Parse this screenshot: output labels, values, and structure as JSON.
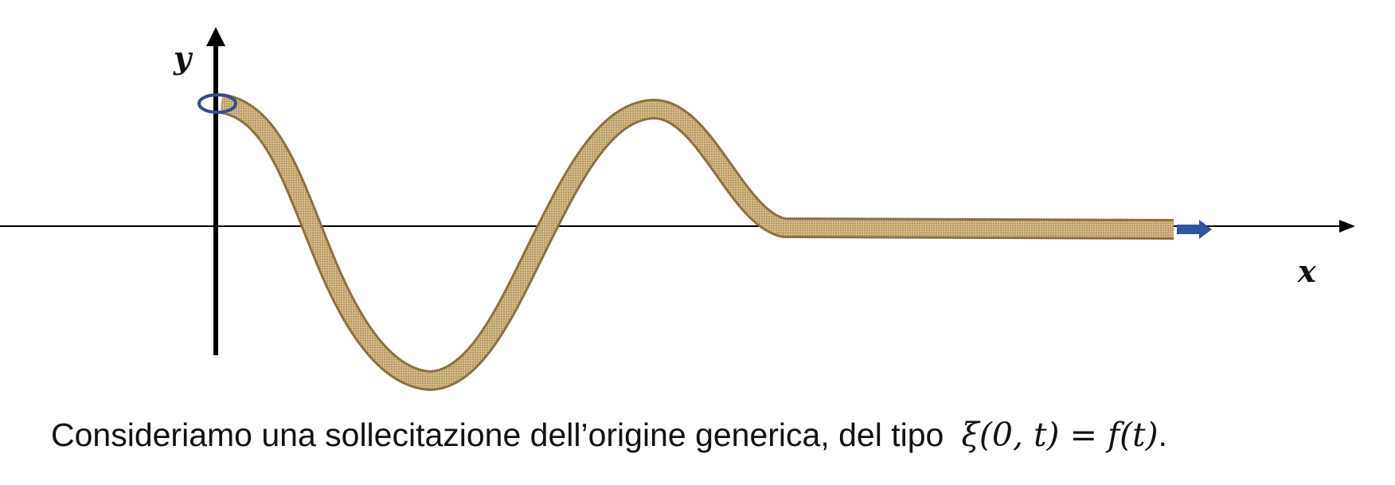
{
  "diagram": {
    "axis_x_label": "x",
    "axis_y_label": "y",
    "caption": "Consideriamo una sollecitazione dell’origine generica, del tipo",
    "formula": "ξ(0, t) = f(t)",
    "caption_end": ".",
    "colors": {
      "axes": "#000000",
      "rope": "#c3a56e",
      "rope_dark": "#8d7040",
      "ring": "#2f4f8f",
      "arrow": "#2f55a0"
    },
    "icons": {
      "ring": "ring-icon",
      "direction_arrow": "arrow-right-icon"
    }
  }
}
